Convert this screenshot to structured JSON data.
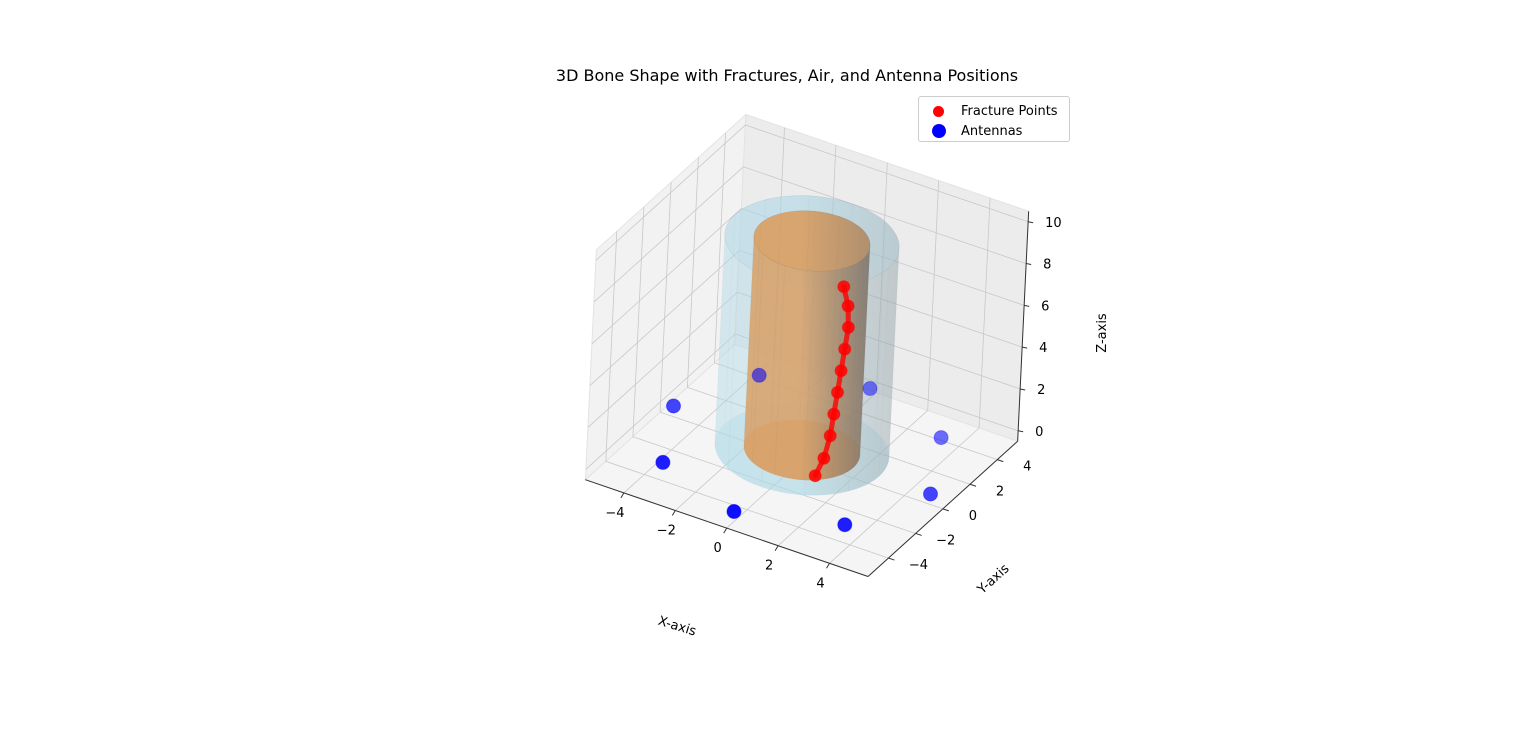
{
  "chart_data": {
    "type": "scatter",
    "projection": "3d",
    "title": "3D Bone Shape with Fractures, Air, and Antenna Positions",
    "xlabel": "X-axis",
    "ylabel": "Y-axis",
    "zlabel": "Z-axis",
    "xlim": [
      -5.5,
      5.5
    ],
    "ylim": [
      -5.5,
      5.5
    ],
    "zlim": [
      -0.5,
      10.5
    ],
    "x_ticks": [
      "−4",
      "−2",
      "0",
      "2",
      "4"
    ],
    "y_ticks": [
      "−4",
      "−2",
      "0",
      "2",
      "4"
    ],
    "z_ticks": [
      "0",
      "2",
      "4",
      "6",
      "8",
      "10"
    ],
    "grid": true,
    "legend_position": "upper right",
    "legend": [
      {
        "label": "Fracture Points",
        "color": "#ff0000"
      },
      {
        "label": "Antennas",
        "color": "#0000ff"
      }
    ],
    "surfaces": [
      {
        "kind": "cylinder",
        "role": "bone",
        "radius": 2,
        "z_range": [
          0,
          10
        ],
        "color": "#d9a066"
      },
      {
        "kind": "cylinder",
        "role": "air",
        "radius": 3,
        "z_range": [
          0,
          10
        ],
        "color": "#add8e6"
      }
    ],
    "series": [
      {
        "name": "Fracture Points",
        "color": "#ff0000",
        "x": [
          1.3,
          1.5,
          1.6,
          1.65,
          1.7,
          1.75,
          1.8,
          1.85,
          1.8,
          1.7
        ],
        "y": [
          -1.5,
          -1.3,
          -1.1,
          -1.0,
          -0.9,
          -0.8,
          -0.7,
          -0.6,
          -0.6,
          -0.8
        ],
        "z": [
          0.2,
          1.0,
          2.0,
          3.0,
          4.0,
          5.0,
          6.0,
          7.0,
          8.0,
          9.0
        ]
      },
      {
        "name": "Antennas",
        "color": "#0000ff",
        "x": [
          5.0,
          3.54,
          0.0,
          -3.54,
          -5.0,
          -3.54,
          0.0,
          3.54
        ],
        "y": [
          0.0,
          3.54,
          5.0,
          3.54,
          0.0,
          -3.54,
          -5.0,
          -3.54
        ],
        "z": [
          0,
          0,
          0,
          0,
          0,
          0,
          0,
          0
        ]
      }
    ]
  }
}
